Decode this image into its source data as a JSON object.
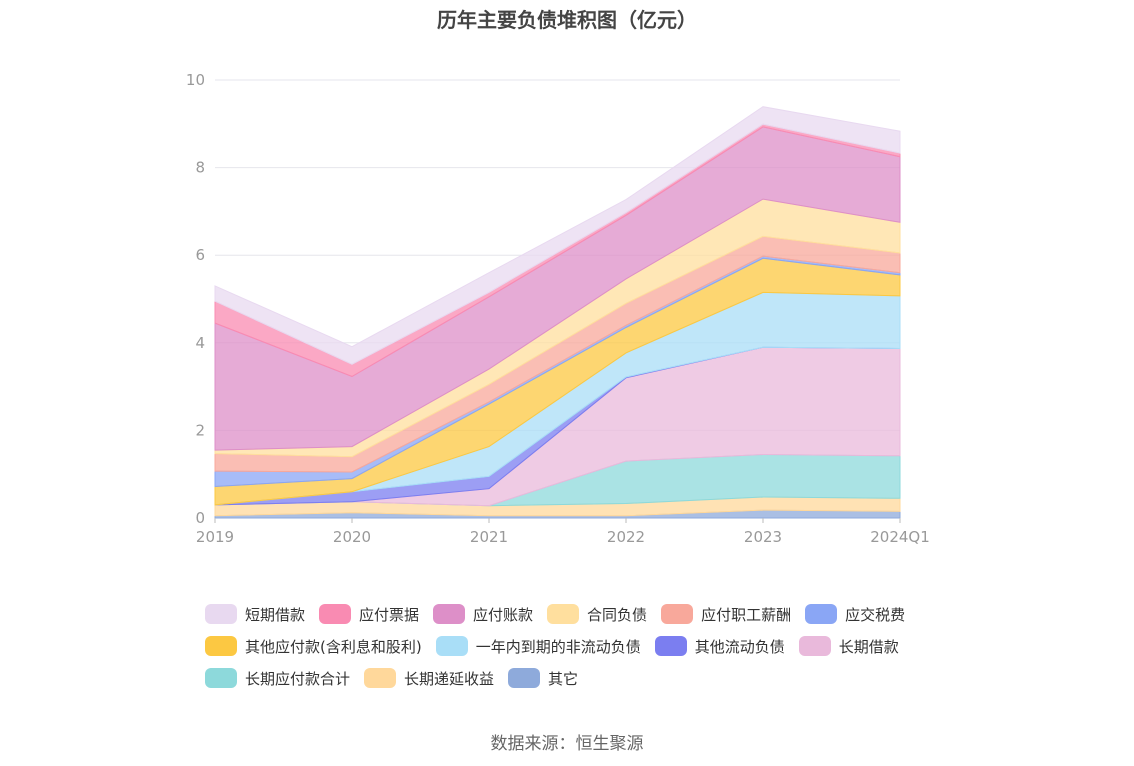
{
  "chart_data": {
    "type": "area",
    "stacked": true,
    "title": "历年主要负债堆积图（亿元）",
    "source": "数据来源：恒生聚源",
    "categories": [
      "2019",
      "2020",
      "2021",
      "2022",
      "2023",
      "2024Q1"
    ],
    "ylim": [
      0,
      10
    ],
    "yticks": [
      "0",
      "2",
      "4",
      "6",
      "8",
      "10"
    ],
    "grid": true,
    "legend_position": "bottom",
    "series": [
      {
        "name": "其它",
        "color": "#8eaadb",
        "values": [
          0.05,
          0.12,
          0.05,
          0.05,
          0.18,
          0.15
        ]
      },
      {
        "name": "长期递延收益",
        "color": "#ffd89b",
        "values": [
          0.25,
          0.25,
          0.23,
          0.28,
          0.3,
          0.3
        ]
      },
      {
        "name": "长期应付款合计",
        "color": "#8dd9db",
        "values": [
          0.0,
          0.0,
          0.0,
          0.97,
          0.97,
          0.97
        ]
      },
      {
        "name": "长期借款",
        "color": "#e9b9db",
        "values": [
          0.0,
          0.0,
          0.39,
          1.9,
          2.45,
          2.45
        ]
      },
      {
        "name": "其他流动负债",
        "color": "#7b7ef0",
        "values": [
          0.0,
          0.23,
          0.28,
          0.02,
          0.0,
          0.0
        ]
      },
      {
        "name": "一年内到期的非流动负债",
        "color": "#a9def7",
        "values": [
          0.0,
          0.0,
          0.68,
          0.55,
          1.25,
          1.2
        ]
      },
      {
        "name": "其他应付款(含利息和股利)",
        "color": "#fcc842",
        "values": [
          0.42,
          0.3,
          0.97,
          0.58,
          0.78,
          0.48
        ]
      },
      {
        "name": "应交税费",
        "color": "#8aa6f5",
        "values": [
          0.35,
          0.15,
          0.05,
          0.05,
          0.05,
          0.05
        ]
      },
      {
        "name": "应付职工薪酬",
        "color": "#f8a89b",
        "values": [
          0.4,
          0.35,
          0.4,
          0.5,
          0.45,
          0.45
        ]
      },
      {
        "name": "合同负债",
        "color": "#ffdf9e",
        "values": [
          0.08,
          0.23,
          0.35,
          0.56,
          0.85,
          0.7
        ]
      },
      {
        "name": "应付账款",
        "color": "#dd8fc8",
        "values": [
          2.9,
          1.6,
          1.65,
          1.45,
          1.65,
          1.5
        ]
      },
      {
        "name": "应付票据",
        "color": "#f98bb2",
        "values": [
          0.5,
          0.28,
          0.1,
          0.06,
          0.06,
          0.08
        ]
      },
      {
        "name": "短期借款",
        "color": "#e8d9f0",
        "values": [
          0.35,
          0.4,
          0.45,
          0.3,
          0.4,
          0.5
        ]
      }
    ],
    "legend_order": [
      "短期借款",
      "应付票据",
      "应付账款",
      "合同负债",
      "应付职工薪酬",
      "应交税费",
      "其他应付款(含利息和股利)",
      "一年内到期的非流动负债",
      "其他流动负债",
      "长期借款",
      "长期应付款合计",
      "长期递延收益",
      "其它"
    ],
    "legend_colors": {
      "短期借款": "#e8d9f0",
      "应付票据": "#f98bb2",
      "应付账款": "#dd8fc8",
      "合同负债": "#ffdf9e",
      "应付职工薪酬": "#f8a89b",
      "应交税费": "#8aa6f5",
      "其他应付款(含利息和股利)": "#fcc842",
      "一年内到期的非流动负债": "#a9def7",
      "其他流动负债": "#7b7ef0",
      "长期借款": "#e9b9db",
      "长期应付款合计": "#8dd9db",
      "长期递延收益": "#ffd89b",
      "其它": "#8eaadb"
    }
  }
}
